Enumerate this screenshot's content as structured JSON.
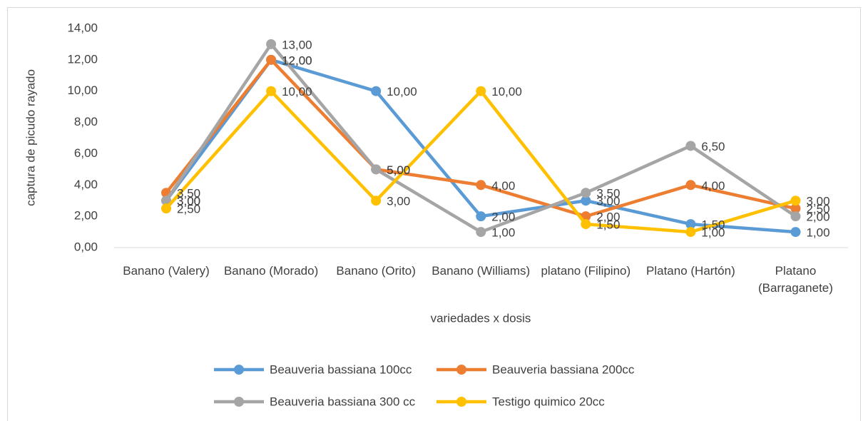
{
  "chart_data": {
    "type": "line",
    "y_axis_label": "captura de picudo rayado",
    "x_axis_label": "variedades x dosis",
    "categories": [
      "Banano (Valery)",
      "Banano (Morado)",
      "Banano (Orito)",
      "Banano (Williams)",
      "platano (Filipino)",
      "Platano (Hartón)",
      "Platano (Barraganete)"
    ],
    "series": [
      {
        "name": "Beauveria bassiana 100cc",
        "color": "#5b9bd5",
        "values": [
          3,
          12,
          10,
          2,
          3,
          1.5,
          1
        ],
        "value_labels": [
          "3,00",
          "12,00",
          "10,00",
          "2,00",
          "3,00",
          "1,50",
          "1,00"
        ]
      },
      {
        "name": "Beauveria bassiana 200cc",
        "color": "#ed7d31",
        "values": [
          3.5,
          12,
          5,
          4,
          2,
          4,
          2.5
        ],
        "value_labels": [
          "3,50",
          "12,00",
          "5,00",
          "4,00",
          "2,00",
          "4,00",
          "2,50"
        ]
      },
      {
        "name": "Beauveria bassiana 300 cc",
        "color": "#a5a5a5",
        "values": [
          3,
          13,
          5,
          1,
          3.5,
          6.5,
          2
        ],
        "value_labels": [
          "3,00",
          "13,00",
          "5,00",
          "1,00",
          "3,50",
          "6,50",
          "2,00"
        ]
      },
      {
        "name": "Testigo  quimico 20cc",
        "color": "#ffc000",
        "values": [
          2.5,
          10,
          3,
          10,
          1.5,
          1,
          3
        ],
        "value_labels": [
          "2,50",
          "10,00",
          "3,00",
          "10,00",
          "1,50",
          "1,00",
          "3,00"
        ]
      }
    ],
    "ylim": [
      0,
      14
    ],
    "yticks": [
      {
        "value": 0,
        "label": "0,00"
      },
      {
        "value": 2,
        "label": "2,00"
      },
      {
        "value": 4,
        "label": "4,00"
      },
      {
        "value": 6,
        "label": "6,00"
      },
      {
        "value": 8,
        "label": "8,00"
      },
      {
        "value": 10,
        "label": "10,00"
      },
      {
        "value": 12,
        "label": "12,00"
      },
      {
        "value": 14,
        "label": "14,00"
      }
    ],
    "legend": "bottom"
  }
}
